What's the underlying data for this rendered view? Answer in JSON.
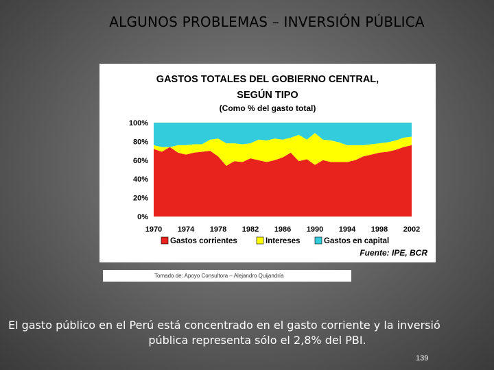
{
  "slide": {
    "title": "ALGUNOS PROBLEMAS – INVERSIÓN PÚBLICA",
    "source_note": "Tomado de: Apoyo Consultora – Alejandro Quijandría",
    "caption_line1": "El gasto público en el Perú está concentrado en el gasto corriente y la inversió",
    "caption_line2": "pública representa sólo el 2,8% del PBI.",
    "page_number": "139"
  },
  "chart_data": {
    "type": "area",
    "stacked": true,
    "title_line1": "GASTOS TOTALES DEL GOBIERNO CENTRAL,",
    "title_line2": "SEGÚN TIPO",
    "subtitle": "(Como % del gasto total)",
    "source": "Fuente: IPE, BCR",
    "ylim": [
      0,
      100
    ],
    "yticks": [
      "0%",
      "20%",
      "40%",
      "60%",
      "80%",
      "100%"
    ],
    "xticks": [
      "1970",
      "1974",
      "1978",
      "1982",
      "1986",
      "1990",
      "1994",
      "1998",
      "2002"
    ],
    "x": [
      1970,
      1971,
      1972,
      1973,
      1974,
      1975,
      1976,
      1977,
      1978,
      1979,
      1980,
      1981,
      1982,
      1983,
      1984,
      1985,
      1986,
      1987,
      1988,
      1989,
      1990,
      1991,
      1992,
      1993,
      1994,
      1995,
      1996,
      1997,
      1998,
      1999,
      2000,
      2001,
      2002
    ],
    "series": [
      {
        "name": "Gastos corrientes",
        "color": "#e8231e",
        "values": [
          72,
          69,
          74,
          68,
          66,
          68,
          69,
          70,
          64,
          54,
          59,
          58,
          62,
          60,
          58,
          60,
          63,
          68,
          59,
          61,
          55,
          60,
          58,
          58,
          58,
          60,
          64,
          66,
          68,
          69,
          71,
          74,
          76
        ]
      },
      {
        "name": "Intereses",
        "color": "#ffff00",
        "values": [
          4,
          5,
          0,
          8,
          10,
          9,
          8,
          12,
          19,
          24,
          19,
          19,
          16,
          22,
          23,
          23,
          19,
          16,
          28,
          21,
          34,
          22,
          23,
          21,
          18,
          16,
          12,
          11,
          10,
          10,
          10,
          10,
          9
        ]
      },
      {
        "name": "Gastos en capital",
        "color": "#33ccdd",
        "values": [
          24,
          26,
          26,
          24,
          24,
          23,
          23,
          18,
          17,
          22,
          22,
          23,
          22,
          18,
          19,
          17,
          18,
          16,
          13,
          18,
          11,
          18,
          19,
          21,
          24,
          24,
          24,
          23,
          22,
          21,
          19,
          16,
          15
        ]
      }
    ]
  }
}
